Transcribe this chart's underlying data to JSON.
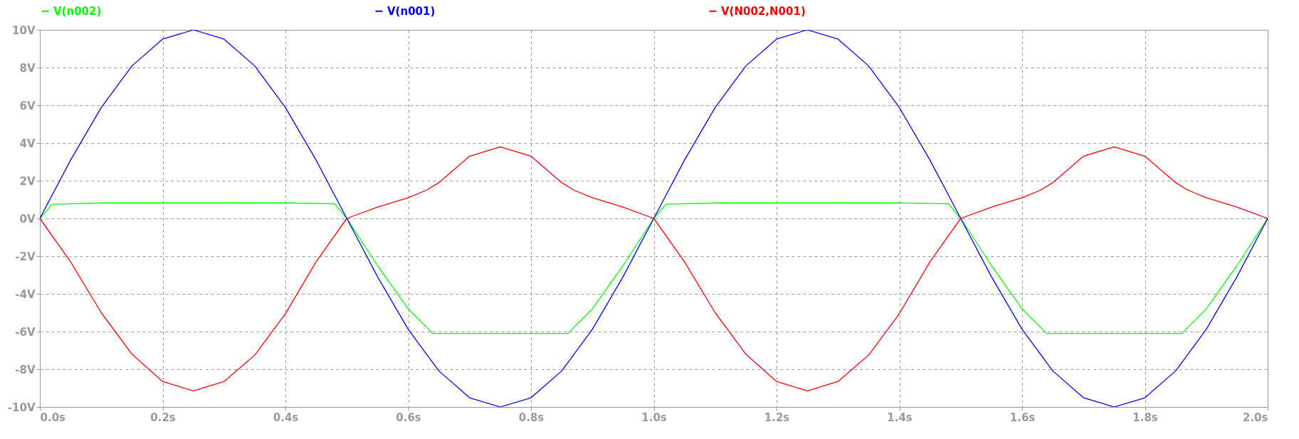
{
  "chart_data": {
    "type": "line",
    "xlim": [
      0,
      2
    ],
    "ylim": [
      -10,
      10
    ],
    "xticks": [
      {
        "value": 0,
        "label": "0.0s"
      },
      {
        "value": 0.2,
        "label": "0.2s"
      },
      {
        "value": 0.4,
        "label": "0.4s"
      },
      {
        "value": 0.6,
        "label": "0.6s"
      },
      {
        "value": 0.8,
        "label": "0.8s"
      },
      {
        "value": 1.0,
        "label": "1.0s"
      },
      {
        "value": 1.2,
        "label": "1.2s"
      },
      {
        "value": 1.4,
        "label": "1.4s"
      },
      {
        "value": 1.6,
        "label": "1.6s"
      },
      {
        "value": 1.8,
        "label": "1.8s"
      },
      {
        "value": 2.0,
        "label": "2.0s"
      }
    ],
    "yticks": [
      {
        "value": -10,
        "label": "-10V"
      },
      {
        "value": -8,
        "label": "-8V"
      },
      {
        "value": -6,
        "label": "-6V"
      },
      {
        "value": -4,
        "label": "-4V"
      },
      {
        "value": -2,
        "label": "-2V"
      },
      {
        "value": 0,
        "label": "0V"
      },
      {
        "value": 2,
        "label": "2V"
      },
      {
        "value": 4,
        "label": "4V"
      },
      {
        "value": 6,
        "label": "6V"
      },
      {
        "value": 8,
        "label": "8V"
      },
      {
        "value": 10,
        "label": "10V"
      }
    ],
    "grid": true,
    "legend": "top",
    "series": [
      {
        "name": "V(n002)",
        "color": "#00ff00",
        "x": [
          0,
          0.02,
          0.1,
          0.2,
          0.3,
          0.4,
          0.48,
          0.5,
          0.55,
          0.6,
          0.64,
          0.7,
          0.8,
          0.86,
          0.9,
          0.95,
          1.0,
          1.02,
          1.1,
          1.2,
          1.3,
          1.4,
          1.48,
          1.5,
          1.55,
          1.6,
          1.64,
          1.7,
          1.8,
          1.86,
          1.9,
          1.95,
          2.0
        ],
        "values": [
          0,
          0.75,
          0.82,
          0.83,
          0.83,
          0.82,
          0.78,
          0,
          -2.5,
          -4.8,
          -6.1,
          -6.1,
          -6.1,
          -6.1,
          -4.8,
          -2.5,
          0,
          0.75,
          0.82,
          0.83,
          0.83,
          0.82,
          0.78,
          0,
          -2.5,
          -4.8,
          -6.1,
          -6.1,
          -6.1,
          -6.1,
          -4.8,
          -2.5,
          0
        ]
      },
      {
        "name": "V(n001)",
        "color": "#0000ff",
        "x": [
          0,
          0.05,
          0.1,
          0.15,
          0.2,
          0.25,
          0.3,
          0.35,
          0.4,
          0.45,
          0.5,
          0.55,
          0.6,
          0.65,
          0.7,
          0.75,
          0.8,
          0.85,
          0.9,
          0.95,
          1.0,
          1.05,
          1.1,
          1.15,
          1.2,
          1.25,
          1.3,
          1.35,
          1.4,
          1.45,
          1.5,
          1.55,
          1.6,
          1.65,
          1.7,
          1.75,
          1.8,
          1.85,
          1.9,
          1.95,
          2.0
        ],
        "values": [
          0,
          3.09,
          5.88,
          8.09,
          9.51,
          10,
          9.51,
          8.09,
          5.88,
          3.09,
          0,
          -3.09,
          -5.88,
          -8.09,
          -9.51,
          -10,
          -9.51,
          -8.09,
          -5.88,
          -3.09,
          0,
          3.09,
          5.88,
          8.09,
          9.51,
          10,
          9.51,
          8.09,
          5.88,
          3.09,
          0,
          -3.09,
          -5.88,
          -8.09,
          -9.51,
          -10,
          -9.51,
          -8.09,
          -5.88,
          -3.09,
          0
        ]
      },
      {
        "name": "V(N002,N001)",
        "color": "#ff0000",
        "x": [
          0,
          0.05,
          0.1,
          0.15,
          0.2,
          0.25,
          0.3,
          0.35,
          0.4,
          0.45,
          0.5,
          0.55,
          0.6,
          0.63,
          0.65,
          0.7,
          0.75,
          0.8,
          0.85,
          0.87,
          0.9,
          0.95,
          1.0,
          1.05,
          1.1,
          1.15,
          1.2,
          1.25,
          1.3,
          1.35,
          1.4,
          1.45,
          1.5,
          1.55,
          1.6,
          1.63,
          1.65,
          1.7,
          1.75,
          1.8,
          1.85,
          1.87,
          1.9,
          1.95,
          2.0
        ],
        "values": [
          0,
          -2.3,
          -5.0,
          -7.2,
          -8.65,
          -9.15,
          -8.65,
          -7.25,
          -5.05,
          -2.3,
          0,
          0.6,
          1.1,
          1.5,
          1.9,
          3.3,
          3.8,
          3.3,
          1.9,
          1.5,
          1.1,
          0.6,
          0,
          -2.3,
          -5.0,
          -7.2,
          -8.65,
          -9.15,
          -8.65,
          -7.25,
          -5.05,
          -2.3,
          0,
          0.6,
          1.1,
          1.5,
          1.9,
          3.3,
          3.8,
          3.3,
          1.9,
          1.5,
          1.1,
          0.6,
          0
        ]
      }
    ]
  }
}
